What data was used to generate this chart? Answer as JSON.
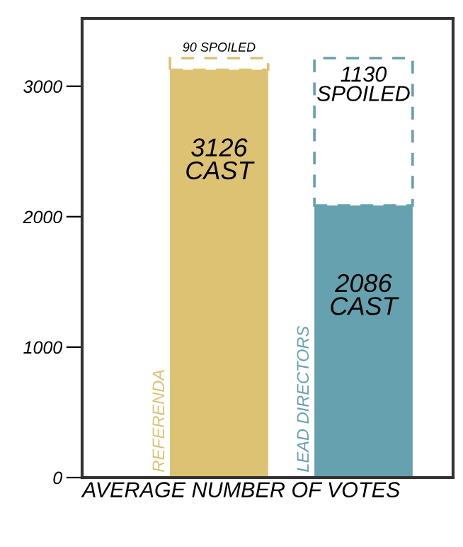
{
  "chart_data": {
    "type": "bar",
    "stacked": true,
    "xlabel": "AVERAGE NUMBER OF VOTES",
    "categories": [
      "REFERENDA",
      "LEAD DIRECTORS"
    ],
    "series": [
      {
        "colors": [
          "#dcc272",
          "#65a1ae"
        ],
        "values": [
          3126,
          2086
        ],
        "value_labels": [
          "3126\nCAST",
          "2086\nCAST"
        ]
      },
      {
        "colors": [
          "#dcc272",
          "#65a1ae"
        ],
        "line_style": "dashed",
        "values": [
          90,
          1130
        ],
        "value_labels": [
          "90 SPOILED",
          "1130\nSPOILED"
        ]
      }
    ],
    "ylim": [
      0,
      3520
    ],
    "yticks": [
      0,
      1000,
      2000,
      3000
    ],
    "grid": false,
    "legend": false
  }
}
